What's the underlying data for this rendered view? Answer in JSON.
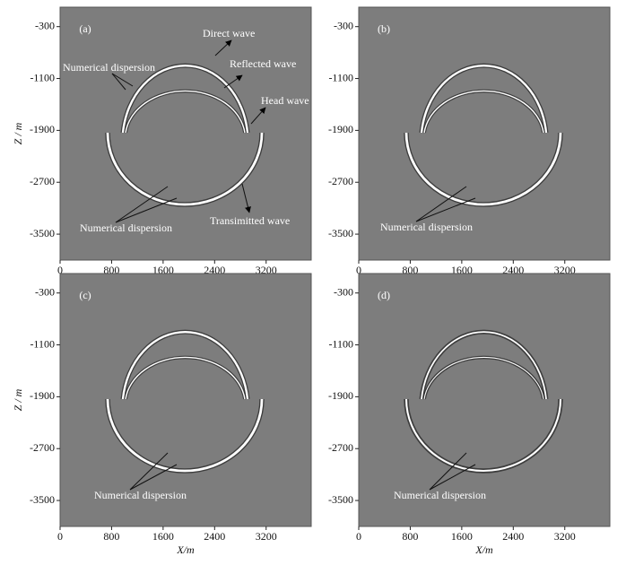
{
  "chart_data": [
    {
      "type": "wavefield",
      "label": "(a)",
      "ylabel": "Z / m",
      "xlim": [
        0,
        3900
      ],
      "ylim": [
        -3900,
        0
      ],
      "xticks": [
        0,
        800,
        1600,
        2400,
        3200
      ],
      "yticks": [
        -300,
        -1100,
        -1900,
        -2700,
        -3500
      ],
      "annotations": [
        "Direct wave",
        "Numerical dispersion",
        "Reflected wave",
        "Head wave",
        "Transimitted wave",
        "Numerical dispersion"
      ]
    },
    {
      "type": "wavefield",
      "label": "(b)",
      "xlim": [
        0,
        3900
      ],
      "ylim": [
        -3900,
        0
      ],
      "xticks": [
        0,
        800,
        1600,
        2400,
        3200
      ],
      "yticks": [
        -300,
        -1100,
        -1900,
        -2700,
        -3500
      ],
      "annotations": [
        "Numerical dispersion"
      ]
    },
    {
      "type": "wavefield",
      "label": "(c)",
      "ylabel": "Z / m",
      "xlabel": "X/m",
      "xlim": [
        0,
        3900
      ],
      "ylim": [
        -3900,
        0
      ],
      "xticks": [
        0,
        800,
        1600,
        2400,
        3200
      ],
      "yticks": [
        -300,
        -1100,
        -1900,
        -2700,
        -3500
      ],
      "annotations": [
        "Numerical dispersion"
      ]
    },
    {
      "type": "wavefield",
      "label": "(d)",
      "xlabel": "X/m",
      "xlim": [
        0,
        3900
      ],
      "ylim": [
        -3900,
        0
      ],
      "xticks": [
        0,
        800,
        1600,
        2400,
        3200
      ],
      "yticks": [
        -300,
        -1100,
        -1900,
        -2700,
        -3500
      ],
      "annotations": [
        "Numerical dispersion"
      ]
    }
  ]
}
